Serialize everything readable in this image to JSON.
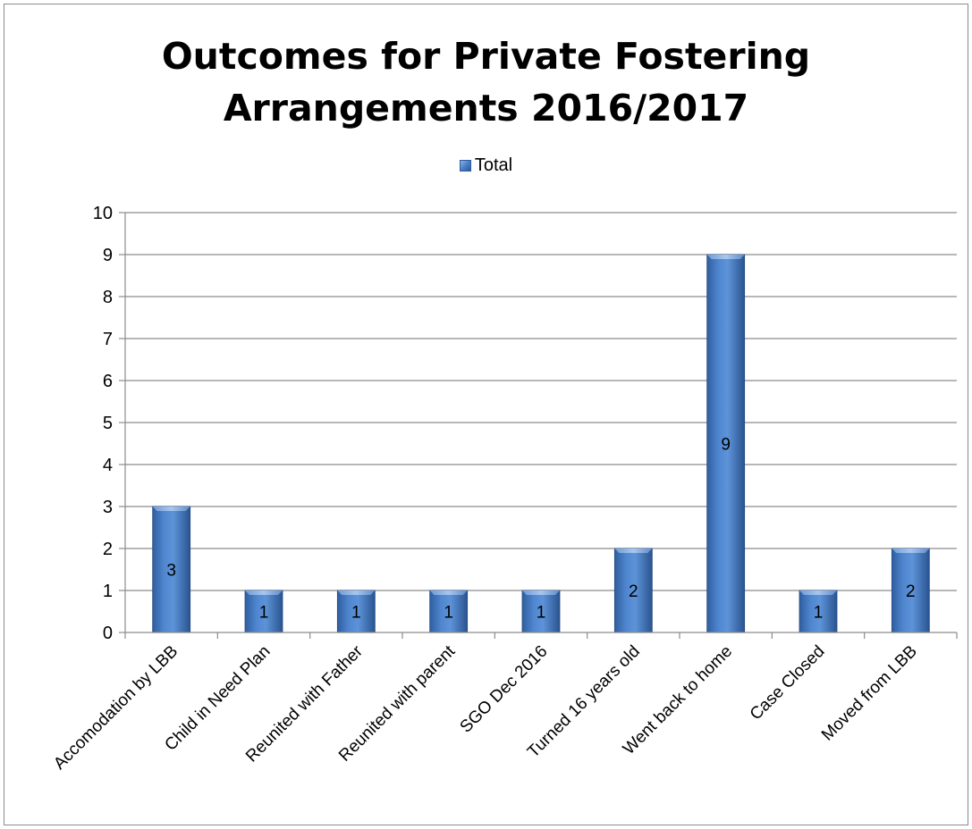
{
  "chart_data": {
    "type": "bar",
    "title_lines": [
      "Outcomes for Private Fostering",
      "Arrangements 2016/2017"
    ],
    "legend": {
      "label": "Total",
      "placement": "top"
    },
    "categories": [
      "Accomodation by LBB",
      "Child in Need Plan",
      "Reunited with Father",
      "Reunited with parent",
      "SGO Dec 2016",
      "Turned 16 years old",
      "Went back to home",
      "Case Closed",
      "Moved from LBB"
    ],
    "series": [
      {
        "name": "Total",
        "values": [
          3,
          1,
          1,
          1,
          1,
          2,
          9,
          1,
          2
        ]
      }
    ],
    "data_labels": [
      "3",
      "1",
      "1",
      "1",
      "1",
      "2",
      "9",
      "1",
      "2"
    ],
    "y_ticks": [
      "0",
      "1",
      "2",
      "3",
      "4",
      "5",
      "6",
      "7",
      "8",
      "9",
      "10"
    ],
    "ylim": [
      0,
      10
    ],
    "grid": true,
    "colors": {
      "bar_light": "#8fb3e3",
      "bar_mid": "#4a7fc7",
      "bar_dark": "#2a5694",
      "grid": "#8c8c8c"
    }
  }
}
